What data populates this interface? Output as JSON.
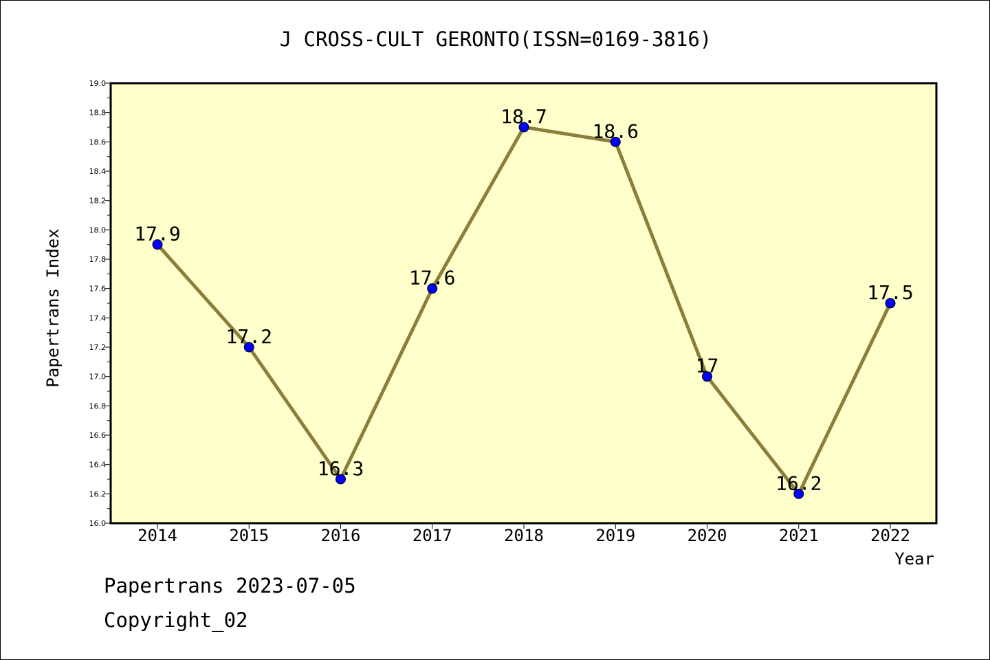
{
  "chart_data": {
    "type": "line",
    "title": "J CROSS-CULT GERONTO(ISSN=0169-3816)",
    "xlabel": "Year",
    "ylabel": "Papertrans Index",
    "categories": [
      "2014",
      "2015",
      "2016",
      "2017",
      "2018",
      "2019",
      "2020",
      "2021",
      "2022"
    ],
    "series": [
      {
        "values": [
          17.9,
          17.2,
          16.3,
          17.6,
          18.7,
          18.6,
          17.0,
          16.2,
          17.5
        ],
        "data_labels": [
          "17.9",
          "17.2",
          "16.3",
          "17.6",
          "18.7",
          "18.6",
          "17",
          "16.2",
          "17.5"
        ]
      }
    ],
    "ylim": [
      16.0,
      19.0
    ],
    "yticks": [
      "16.0",
      "16.2",
      "16.4",
      "16.6",
      "16.8",
      "17.0",
      "17.2",
      "17.4",
      "17.6",
      "17.8",
      "18.0",
      "18.2",
      "18.4",
      "18.6",
      "18.8",
      "19.0"
    ],
    "grid": false,
    "colors": {
      "plot_background": "#ffffcc",
      "line": "#8b7d3a",
      "marker": "#0000ff"
    }
  },
  "footer": {
    "line1": "Papertrans 2023-07-05",
    "line2": "Copyright_02"
  }
}
